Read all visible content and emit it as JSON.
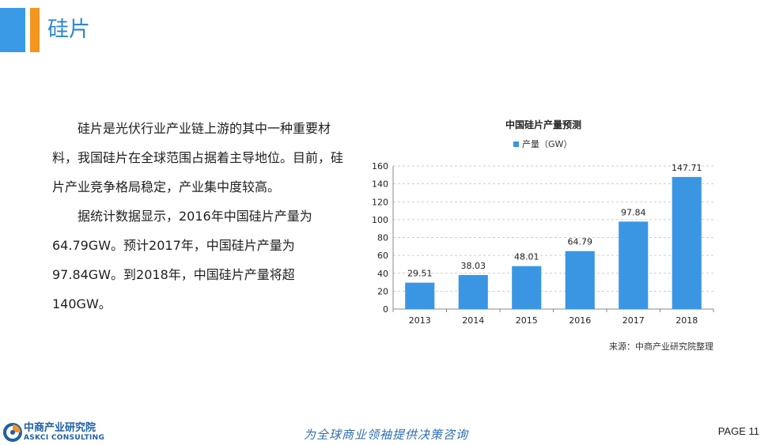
{
  "header": {
    "title": "硅片",
    "accent_colors": [
      "#3a9ae6",
      "#f5941f"
    ]
  },
  "body": {
    "paragraphs": [
      "硅片是光伏行业产业链上游的其中一种重要材料，我国硅片在全球范围占据着主导地位。目前，硅片产业竞争格局稳定，产业集中度较高。",
      "据统计数据显示，2016年中国硅片产量为64.79GW。预计2017年，中国硅片产量为97.84GW。到2018年，中国硅片产量将超140GW。"
    ]
  },
  "chart_data": {
    "type": "bar",
    "title": "中国硅片产量预测",
    "categories": [
      "2013",
      "2014",
      "2015",
      "2016",
      "2017",
      "2018"
    ],
    "series": [
      {
        "name": "产量（GW）",
        "values": [
          29.51,
          38.03,
          48.01,
          64.79,
          97.84,
          147.71
        ],
        "color": "#3a96e3"
      }
    ],
    "data_labels": [
      "29.51",
      "38.03",
      "48.01",
      "64.79",
      "97.84",
      "147.71"
    ],
    "y_ticks": [
      "0",
      "20",
      "40",
      "60",
      "80",
      "100",
      "120",
      "140",
      "160"
    ],
    "ylim": [
      0,
      160
    ],
    "grid": "horizontal dashed",
    "legend_position": "top",
    "source": "来源：中商产业研究院整理"
  },
  "footer": {
    "logo_cn": "中商产业研究院",
    "logo_en": "ASKCI CONSULTING",
    "slogan": "为全球商业领袖提供决策咨询",
    "page_label": "PAGE",
    "page_number": "11"
  }
}
